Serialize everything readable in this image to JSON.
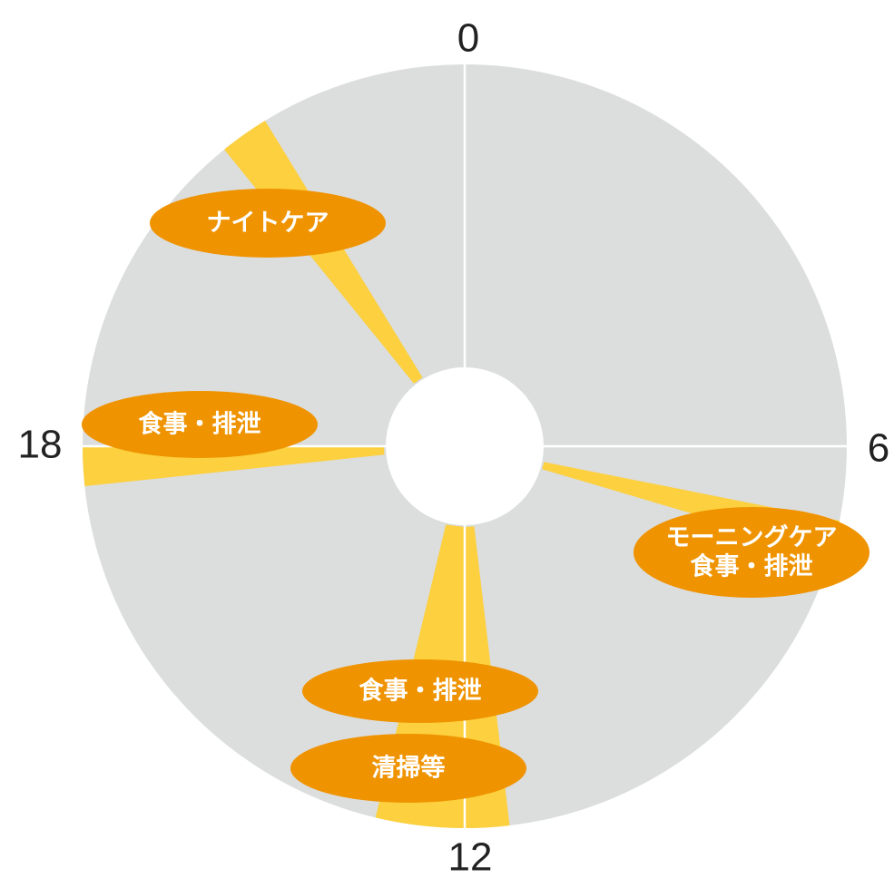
{
  "chart_data": {
    "type": "radial-timeline",
    "hour_range": [
      0,
      24
    ],
    "hour_labels": [
      {
        "hour": 0,
        "text": "0"
      },
      {
        "hour": 6,
        "text": "6"
      },
      {
        "hour": 12,
        "text": "12"
      },
      {
        "hour": 18,
        "text": "18"
      }
    ],
    "activities": [
      {
        "label_lines": [
          "モーニングケア",
          "食事・排泄"
        ],
        "start_hour": 6.75,
        "end_hour": 7.1,
        "peak_hour": 7.4
      },
      {
        "label_lines": [
          "食事・排泄"
        ],
        "start_hour": 11.55,
        "end_hour": 12.0,
        "peak_hour": 11.8
      },
      {
        "label_lines": [
          "清掃等"
        ],
        "start_hour": 12.0,
        "end_hour": 12.9,
        "peak_hour": 12.4
      },
      {
        "label_lines": [
          "食事・排泄"
        ],
        "start_hour": 17.6,
        "end_hour": 18.0,
        "peak_hour": 17.8
      },
      {
        "label_lines": [
          "ナイトケア"
        ],
        "start_hour": 21.4,
        "end_hour": 21.9,
        "peak_hour": 21.7
      }
    ],
    "colors": {
      "dial": "#dcdddd",
      "wedge": "#fcd03e",
      "badge": "#ef9300",
      "badge_text": "#ffffff",
      "divider": "#ffffff",
      "label": "#222222"
    }
  }
}
